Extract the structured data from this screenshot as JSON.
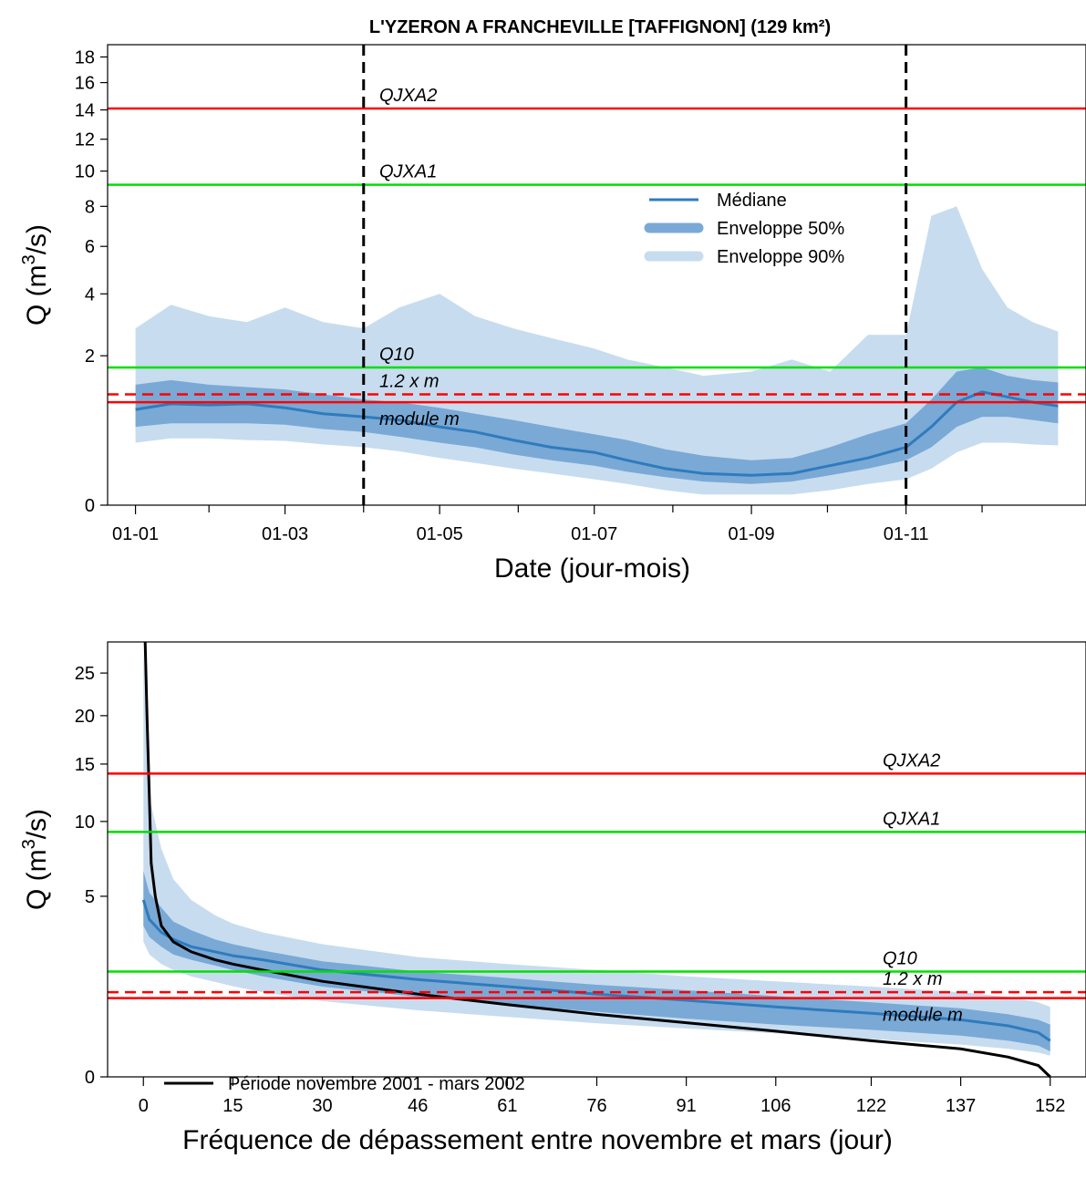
{
  "figure": {
    "title": "L'YZERON A FRANCHEVILLE [TAFFIGNON] (129 km²)"
  },
  "chart_data": [
    {
      "type": "area",
      "xlabel": "Date (jour-mois)",
      "ylabel_main": "Q (m",
      "ylabel_sup": "3",
      "ylabel_end": "/s)",
      "y_scale": "sqrt",
      "ylim": [
        0,
        19
      ],
      "y_ticks": [
        0,
        2,
        4,
        6,
        8,
        10,
        12,
        14,
        16,
        18
      ],
      "x_ticks": [
        "01-01",
        "01-03",
        "01-05",
        "01-07",
        "01-09",
        "01-11"
      ],
      "x_tick_days": [
        1,
        60,
        121,
        182,
        244,
        305
      ],
      "xlim_days": [
        -10,
        376
      ],
      "vertical_markers_days": [
        91,
        305
      ],
      "legend_position": "top-right (inside plot, center-right)",
      "legend": [
        {
          "label": "Médiane",
          "style": "line",
          "color": "#2f7bbd"
        },
        {
          "label": "Enveloppe 50%",
          "style": "band",
          "color": "#7aa9d6"
        },
        {
          "label": "Enveloppe 90%",
          "style": "band",
          "color": "#c7dcef"
        }
      ],
      "reference_lines": [
        {
          "label": "QJXA2",
          "value": 14.1,
          "color": "#ff0000",
          "dashed": false
        },
        {
          "label": "QJXA1",
          "value": 9.2,
          "color": "#00e000",
          "dashed": false
        },
        {
          "label": "Q10",
          "value": 1.7,
          "color": "#00e000",
          "dashed": false
        },
        {
          "label": "1.2 x m",
          "value": 1.1,
          "color": "#ff0000",
          "dashed": true
        },
        {
          "label": "module m",
          "value": 0.95,
          "color": "#ff0000",
          "dashed": false
        }
      ],
      "series": [
        {
          "name": "Médiane",
          "days": [
            1,
            15,
            30,
            45,
            60,
            75,
            91,
            105,
            121,
            135,
            150,
            165,
            182,
            195,
            210,
            225,
            244,
            260,
            275,
            290,
            305,
            315,
            325,
            335,
            345,
            355,
            365
          ],
          "values": [
            0.82,
            0.92,
            0.9,
            0.92,
            0.85,
            0.75,
            0.7,
            0.65,
            0.55,
            0.48,
            0.38,
            0.3,
            0.25,
            0.18,
            0.12,
            0.09,
            0.08,
            0.09,
            0.14,
            0.2,
            0.3,
            0.55,
            0.95,
            1.15,
            1.05,
            0.95,
            0.88
          ]
        },
        {
          "name": "Enveloppe 50%",
          "days": [
            1,
            15,
            30,
            45,
            60,
            75,
            91,
            105,
            121,
            135,
            150,
            165,
            182,
            195,
            210,
            225,
            244,
            260,
            275,
            290,
            305,
            315,
            325,
            335,
            345,
            355,
            365
          ],
          "lower": [
            0.55,
            0.6,
            0.6,
            0.6,
            0.58,
            0.52,
            0.48,
            0.42,
            0.35,
            0.3,
            0.23,
            0.18,
            0.14,
            0.1,
            0.07,
            0.05,
            0.04,
            0.05,
            0.08,
            0.12,
            0.18,
            0.3,
            0.55,
            0.7,
            0.7,
            0.65,
            0.6
          ],
          "upper": [
            1.3,
            1.4,
            1.3,
            1.25,
            1.2,
            1.1,
            1.0,
            0.95,
            0.85,
            0.75,
            0.65,
            0.55,
            0.45,
            0.38,
            0.28,
            0.22,
            0.18,
            0.2,
            0.3,
            0.45,
            0.6,
            1.0,
            1.6,
            1.7,
            1.5,
            1.4,
            1.35
          ]
        },
        {
          "name": "Enveloppe 90%",
          "days": [
            1,
            15,
            30,
            45,
            60,
            75,
            91,
            105,
            121,
            135,
            150,
            165,
            182,
            195,
            210,
            225,
            244,
            260,
            275,
            290,
            305,
            315,
            325,
            335,
            345,
            355,
            365
          ],
          "lower": [
            0.35,
            0.4,
            0.4,
            0.38,
            0.37,
            0.33,
            0.3,
            0.26,
            0.2,
            0.16,
            0.12,
            0.09,
            0.06,
            0.04,
            0.02,
            0.01,
            0.01,
            0.01,
            0.02,
            0.04,
            0.06,
            0.12,
            0.25,
            0.35,
            0.35,
            0.33,
            0.32
          ],
          "upper": [
            2.8,
            3.6,
            3.2,
            3.0,
            3.5,
            3.0,
            2.8,
            3.5,
            4.0,
            3.2,
            2.8,
            2.5,
            2.2,
            1.9,
            1.7,
            1.5,
            1.6,
            1.9,
            1.6,
            2.6,
            2.6,
            7.5,
            8.0,
            5.0,
            3.5,
            3.0,
            2.7
          ]
        }
      ]
    },
    {
      "type": "line",
      "xlabel": "Fréquence de dépassement entre novembre et mars (jour)",
      "ylabel_main": "Q (m",
      "ylabel_sup": "3",
      "ylabel_end": "/s)",
      "y_scale": "sqrt",
      "ylim": [
        0,
        29
      ],
      "y_ticks": [
        0,
        5,
        10,
        15,
        20,
        25
      ],
      "x_ticks": [
        0,
        15,
        30,
        46,
        61,
        76,
        91,
        106,
        122,
        137,
        152
      ],
      "xlim": [
        -6,
        158
      ],
      "legend_position": "bottom-left",
      "legend": [
        {
          "label": "Période novembre 2001 - mars 2002",
          "style": "line",
          "color": "#000000"
        }
      ],
      "reference_lines": [
        {
          "label": "QJXA2",
          "value": 14.1,
          "color": "#ff0000",
          "dashed": false
        },
        {
          "label": "QJXA1",
          "value": 9.2,
          "color": "#00e000",
          "dashed": false
        },
        {
          "label": "Q10",
          "value": 1.7,
          "color": "#00e000",
          "dashed": false
        },
        {
          "label": "1.2 x m",
          "value": 1.1,
          "color": "#ff0000",
          "dashed": true
        },
        {
          "label": "module m",
          "value": 0.95,
          "color": "#ff0000",
          "dashed": false
        }
      ],
      "series": [
        {
          "name": "Période novembre 2001 - mars 2002",
          "x": [
            0.3,
            0.6,
            1,
            1.3,
            2,
            3,
            5,
            8,
            12,
            15,
            20,
            30,
            46,
            61,
            76,
            91,
            106,
            122,
            137,
            145,
            150,
            152
          ],
          "values": [
            29,
            20,
            12,
            7,
            5,
            3.5,
            2.8,
            2.4,
            2.1,
            1.95,
            1.75,
            1.4,
            1.05,
            0.8,
            0.6,
            0.45,
            0.32,
            0.2,
            0.12,
            0.06,
            0.02,
            0.0
          ]
        },
        {
          "name": "Médiane",
          "x": [
            0,
            1,
            3,
            5,
            8,
            12,
            15,
            20,
            30,
            46,
            61,
            76,
            91,
            106,
            122,
            137,
            145,
            150,
            152
          ],
          "values": [
            4.8,
            3.8,
            3.2,
            2.9,
            2.6,
            2.4,
            2.25,
            2.1,
            1.75,
            1.45,
            1.25,
            1.05,
            0.9,
            0.75,
            0.62,
            0.5,
            0.4,
            0.3,
            0.2
          ]
        },
        {
          "name": "Enveloppe 50%",
          "x": [
            0,
            1,
            3,
            5,
            8,
            12,
            15,
            20,
            30,
            46,
            61,
            76,
            91,
            106,
            122,
            137,
            145,
            150,
            152
          ],
          "lower": [
            3.5,
            3.0,
            2.6,
            2.3,
            2.1,
            1.9,
            1.75,
            1.55,
            1.25,
            0.98,
            0.8,
            0.65,
            0.52,
            0.42,
            0.34,
            0.26,
            0.2,
            0.15,
            0.1
          ],
          "upper": [
            6.5,
            5.2,
            4.4,
            3.7,
            3.3,
            2.9,
            2.7,
            2.45,
            2.05,
            1.7,
            1.5,
            1.3,
            1.15,
            1.0,
            0.85,
            0.72,
            0.6,
            0.5,
            0.42
          ]
        },
        {
          "name": "Enveloppe 90%",
          "x": [
            0,
            1,
            3,
            5,
            8,
            12,
            15,
            20,
            30,
            46,
            61,
            76,
            91,
            106,
            122,
            137,
            145,
            150,
            152
          ],
          "lower": [
            2.8,
            2.3,
            1.95,
            1.75,
            1.55,
            1.38,
            1.26,
            1.1,
            0.88,
            0.68,
            0.55,
            0.44,
            0.36,
            0.29,
            0.22,
            0.16,
            0.12,
            0.09,
            0.07
          ],
          "upper": [
            28,
            12,
            8.0,
            6.0,
            4.8,
            4.0,
            3.6,
            3.2,
            2.7,
            2.2,
            1.95,
            1.75,
            1.55,
            1.4,
            1.25,
            1.1,
            0.98,
            0.85,
            0.75
          ]
        }
      ]
    }
  ]
}
